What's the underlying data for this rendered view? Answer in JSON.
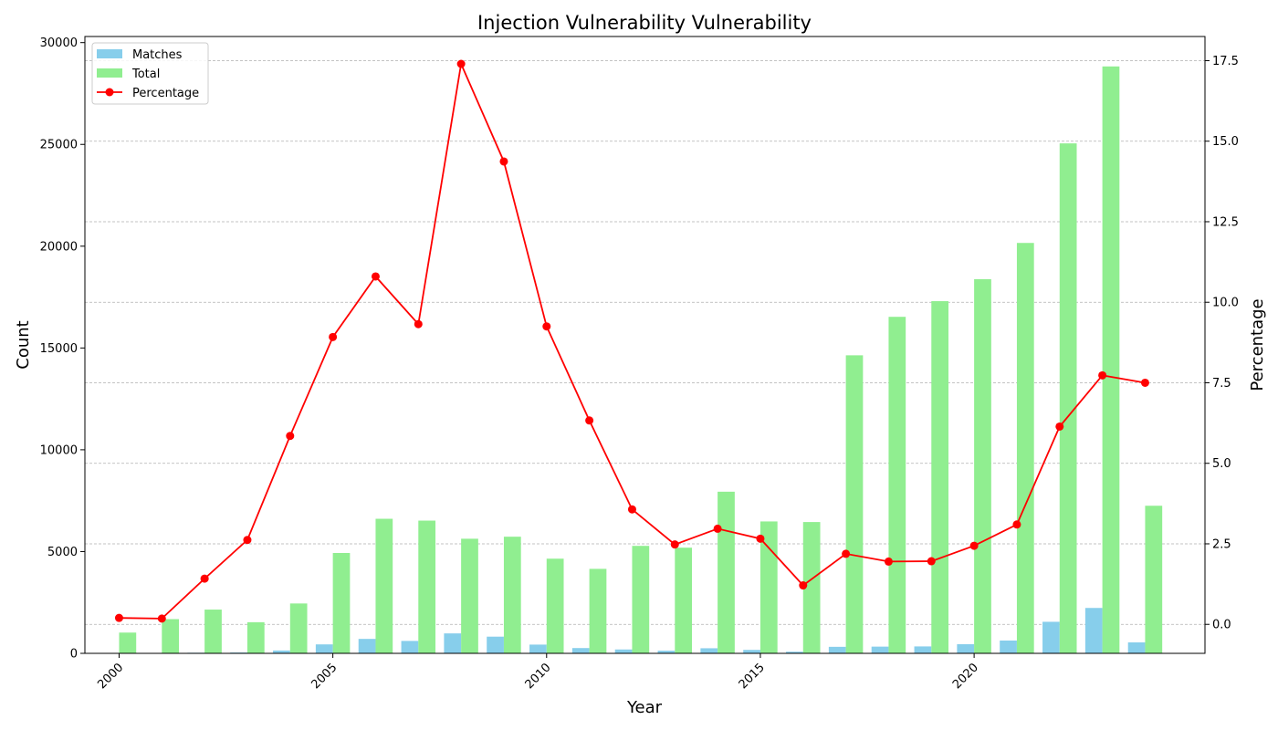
{
  "chart_data": {
    "type": "bar+line",
    "title": "Injection Vulnerability Vulnerability",
    "xlabel": "Year",
    "ylabel": "Count",
    "y2label": "Percentage",
    "x": [
      2000,
      2001,
      2002,
      2003,
      2004,
      2005,
      2006,
      2007,
      2008,
      2009,
      2010,
      2011,
      2012,
      2013,
      2014,
      2015,
      2016,
      2017,
      2018,
      2019,
      2020,
      2021,
      2022,
      2023,
      2024
    ],
    "x_ticks": [
      "2000",
      "2005",
      "2010",
      "2015",
      "2020"
    ],
    "x_tick_values": [
      2000,
      2005,
      2010,
      2015,
      2020
    ],
    "xlim": [
      1999.2,
      2025.4
    ],
    "ylim": [
      0,
      30300
    ],
    "y_ticks": [
      "0",
      "5000",
      "10000",
      "15000",
      "20000",
      "25000",
      "30000"
    ],
    "y_tick_values": [
      0,
      5000,
      10000,
      15000,
      20000,
      25000,
      30000
    ],
    "y2lim": [
      -0.9,
      18.25
    ],
    "y2_ticks": [
      "0.0",
      "2.5",
      "5.0",
      "7.5",
      "10.0",
      "12.5",
      "15.0",
      "17.5"
    ],
    "y2_tick_values": [
      0,
      2.5,
      5,
      7.5,
      10,
      12.5,
      15,
      17.5
    ],
    "grid": "horizontal dashed, secondary axis",
    "legend_position": "top-left",
    "series": [
      {
        "name": "Matches",
        "type": "bar",
        "axis": "left",
        "color": "#87ceeb",
        "values": [
          2,
          3,
          30,
          40,
          140,
          440,
          710,
          610,
          980,
          820,
          430,
          260,
          190,
          130,
          250,
          170,
          80,
          320,
          330,
          340,
          450,
          630,
          1550,
          2230,
          540
        ]
      },
      {
        "name": "Total",
        "type": "bar",
        "axis": "left",
        "color": "#90ee90",
        "values": [
          1020,
          1680,
          2150,
          1530,
          2450,
          4930,
          6610,
          6520,
          5630,
          5730,
          4650,
          4150,
          5280,
          5190,
          7940,
          6480,
          6450,
          14640,
          16530,
          17300,
          18380,
          20160,
          25050,
          28830,
          7250
        ]
      },
      {
        "name": "Percentage",
        "type": "line",
        "axis": "right",
        "color": "#ff0000",
        "values": [
          0.2,
          0.18,
          1.42,
          2.62,
          5.85,
          8.92,
          10.8,
          9.32,
          17.4,
          14.37,
          9.25,
          6.33,
          3.57,
          2.48,
          2.97,
          2.66,
          1.21,
          2.19,
          1.95,
          1.96,
          2.44,
          3.1,
          6.14,
          7.73,
          7.5
        ]
      }
    ]
  }
}
